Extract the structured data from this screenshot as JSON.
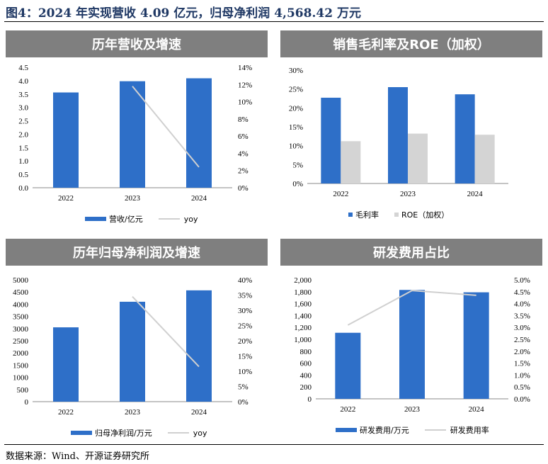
{
  "figure_title": "图4：2024 年实现营收 4.09 亿元，归母净利润 4,568.42 万元",
  "source": "数据来源：Wind、开源证券研究所",
  "colors": {
    "bar": "#2e6fc8",
    "bar2": "#d4d4d4",
    "line": "#d0d0d0",
    "header": "#7f7f7f"
  },
  "chart_data": [
    {
      "type": "bar+line",
      "title": "历年营收及增速",
      "categories": [
        "2022",
        "2023",
        "2024"
      ],
      "series": [
        {
          "name": "营收/亿元",
          "type": "bar",
          "axis": "left",
          "values": [
            3.56,
            3.98,
            4.09
          ]
        },
        {
          "name": "yoy",
          "type": "line",
          "axis": "right",
          "values": [
            null,
            0.118,
            0.024
          ]
        }
      ],
      "left_axis": {
        "ylim": [
          0,
          4.5
        ],
        "ticks": [
          "0.0",
          "0.5",
          "1.0",
          "1.5",
          "2.0",
          "2.5",
          "3.0",
          "3.5",
          "4.0",
          "4.5"
        ]
      },
      "right_axis": {
        "ylim": [
          0,
          0.14
        ],
        "ticks": [
          "0%",
          "2%",
          "4%",
          "6%",
          "8%",
          "10%",
          "12%",
          "14%"
        ]
      },
      "legend_position": "bottom"
    },
    {
      "type": "bar",
      "title": "销售毛利率及ROE（加权）",
      "categories": [
        "2022",
        "2023",
        "2024"
      ],
      "series": [
        {
          "name": "毛利率",
          "type": "bar",
          "axis": "left",
          "values": [
            0.227,
            0.255,
            0.236
          ]
        },
        {
          "name": "ROE（加权）",
          "type": "bar",
          "axis": "left",
          "values": [
            0.112,
            0.132,
            0.129
          ]
        }
      ],
      "left_axis": {
        "ylim": [
          0,
          0.3
        ],
        "ticks": [
          "0%",
          "5%",
          "10%",
          "15%",
          "20%",
          "25%",
          "30%"
        ]
      },
      "legend_position": "bottom"
    },
    {
      "type": "bar+line",
      "title": "历年归母净利润及增速",
      "categories": [
        "2022",
        "2023",
        "2024"
      ],
      "series": [
        {
          "name": "归母净利润/万元",
          "type": "bar",
          "axis": "left",
          "values": [
            3050,
            4100,
            4568.42
          ]
        },
        {
          "name": "yoy",
          "type": "line",
          "axis": "right",
          "values": [
            null,
            0.345,
            0.115
          ]
        }
      ],
      "left_axis": {
        "ylim": [
          0,
          5000
        ],
        "ticks": [
          "0",
          "500",
          "1000",
          "1500",
          "2000",
          "2500",
          "3000",
          "3500",
          "4000",
          "4500",
          "5000"
        ]
      },
      "right_axis": {
        "ylim": [
          0,
          0.4
        ],
        "ticks": [
          "0%",
          "5%",
          "10%",
          "15%",
          "20%",
          "25%",
          "30%",
          "35%",
          "40%"
        ]
      },
      "legend_position": "bottom"
    },
    {
      "type": "bar+line",
      "title": "研发费用占比",
      "categories": [
        "2022",
        "2023",
        "2024"
      ],
      "series": [
        {
          "name": "研发费用/万元",
          "type": "bar",
          "axis": "left",
          "values": [
            1110,
            1830,
            1790
          ]
        },
        {
          "name": "研发费用率",
          "type": "line",
          "axis": "right",
          "values": [
            0.031,
            0.0455,
            0.0435
          ]
        }
      ],
      "left_axis": {
        "ylim": [
          0,
          2000
        ],
        "ticks": [
          "0",
          "200",
          "400",
          "600",
          "800",
          "1,000",
          "1,200",
          "1,400",
          "1,600",
          "1,800",
          "2,000"
        ]
      },
      "right_axis": {
        "ylim": [
          0,
          0.05
        ],
        "ticks": [
          "0.0%",
          "0.5%",
          "1.0%",
          "1.5%",
          "2.0%",
          "2.5%",
          "3.0%",
          "3.5%",
          "4.0%",
          "4.5%",
          "5.0%"
        ]
      },
      "legend_position": "bottom"
    }
  ]
}
